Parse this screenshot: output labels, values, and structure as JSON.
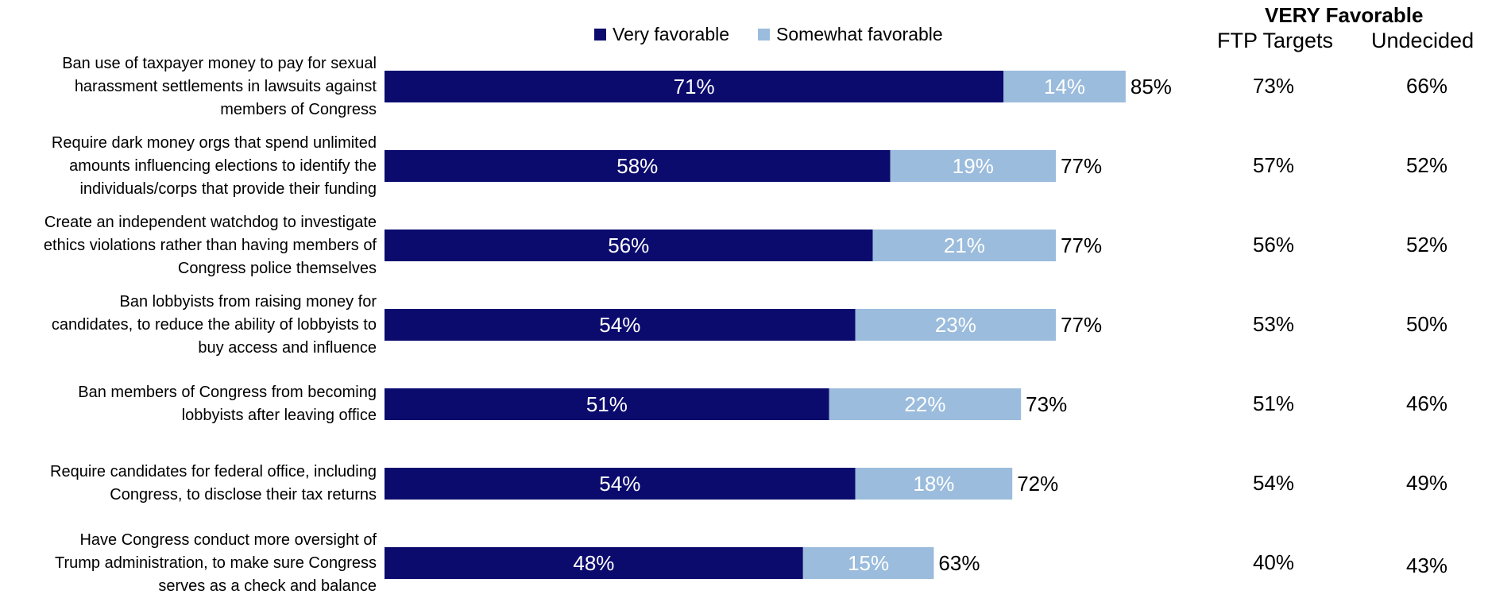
{
  "colors": {
    "very": "#0b0b6e",
    "somewhat": "#9bbcdc"
  },
  "chart_data": {
    "type": "bar",
    "orientation": "horizontal",
    "stacked": true,
    "categories": [
      [
        "Ban use of taxpayer money to pay for sexual",
        "harassment settlements in lawsuits against",
        "members of Congress"
      ],
      [
        "Require dark money orgs that spend unlimited",
        "amounts influencing elections to identify the",
        "individuals/corps that provide their funding"
      ],
      [
        "Create an independent watchdog to investigate",
        "ethics violations rather than having members of",
        "Congress police themselves"
      ],
      [
        "Ban lobbyists from raising money for",
        "candidates, to reduce the ability of lobbyists to",
        "buy access and influence"
      ],
      [
        "Ban members of Congress from becoming",
        "lobbyists after leaving office"
      ],
      [
        "Require candidates for federal office, including",
        "Congress, to disclose their tax returns"
      ],
      [
        "Have Congress conduct more oversight of",
        "Trump administration, to make sure Congress",
        "serves as a check and balance"
      ]
    ],
    "series": [
      {
        "name": "Very favorable",
        "values": [
          71,
          58,
          56,
          54,
          51,
          54,
          48
        ],
        "labels": [
          "71%",
          "58%",
          "56%",
          "54%",
          "51%",
          "54%",
          "48%"
        ]
      },
      {
        "name": "Somewhat favorable",
        "values": [
          14,
          19,
          21,
          23,
          22,
          18,
          15
        ],
        "labels": [
          "14%",
          "19%",
          "21%",
          "23%",
          "22%",
          "18%",
          "15%"
        ]
      }
    ],
    "totals": [
      "85%",
      "77%",
      "77%",
      "77%",
      "73%",
      "72%",
      "63%"
    ],
    "side_table": {
      "title": "VERY Favorable",
      "columns": [
        {
          "name": "FTP Targets",
          "values": [
            "73%",
            "57%",
            "56%",
            "53%",
            "51%",
            "54%",
            "40%"
          ]
        },
        {
          "name": "Undecided",
          "values": [
            "66%",
            "52%",
            "52%",
            "50%",
            "46%",
            "49%",
            "43%"
          ]
        }
      ]
    },
    "legend_position": "top",
    "grid": false,
    "xlim": [
      0,
      100
    ]
  }
}
